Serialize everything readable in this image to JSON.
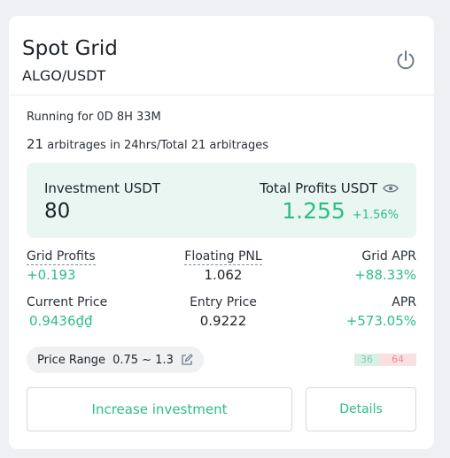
{
  "card": {
    "title": "Spot Grid",
    "pair": "ALGO/USDT",
    "running": "Running for 0D 8H 33M",
    "arb_count": "21",
    "arb_text": " arbitrages in 24hrs/Total 21 arbitrages"
  },
  "investment": {
    "label": "Investment USDT",
    "value": "80"
  },
  "total_profits": {
    "label": "Total Profits USDT",
    "value": "1.255",
    "percent": "+1.56%"
  },
  "stats": {
    "grid_profits": {
      "label": "Grid Profits",
      "value": "+0.193"
    },
    "floating_pnl": {
      "label": "Floating PNL",
      "value": "1.062"
    },
    "grid_apr": {
      "label": "Grid APR",
      "value": "+88.33%"
    },
    "current_price": {
      "label": "Current Price",
      "value": "0.9436₫₫"
    },
    "entry_price": {
      "label": "Entry Price",
      "value": "0.9222"
    },
    "apr": {
      "label": "APR",
      "value": "+573.05%"
    }
  },
  "price_range": {
    "label": "Price Range",
    "value": "0.75 ~ 1.3"
  },
  "order_ratio": {
    "buy": "36",
    "sell": "64"
  },
  "buttons": {
    "increase": "Increase investment",
    "details": "Details"
  },
  "colors": {
    "accent": "#2ebd85",
    "sell": "#ef8d95",
    "panel": "#e9f6f2"
  },
  "icons": {
    "power": "power-icon",
    "eye": "eye-icon",
    "edit": "edit-icon"
  }
}
